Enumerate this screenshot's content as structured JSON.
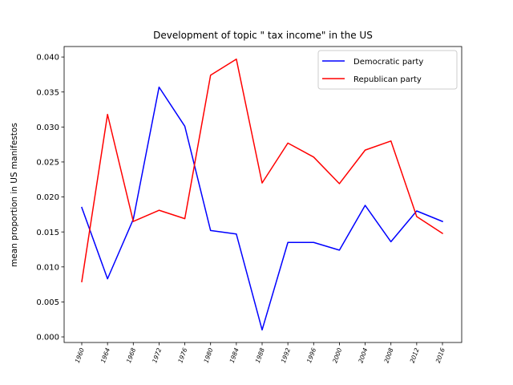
{
  "chart_data": {
    "type": "line",
    "title": "Development of topic \" tax income\" in the US",
    "xlabel": "",
    "ylabel": "mean proportion in US manifestos",
    "categories": [
      "1960",
      "1964",
      "1968",
      "1972",
      "1976",
      "1980",
      "1984",
      "1988",
      "1992",
      "1996",
      "2000",
      "2004",
      "2008",
      "2012",
      "2016"
    ],
    "ylim": [
      -0.0008,
      0.0415
    ],
    "yticks": [
      "0.000",
      "0.005",
      "0.010",
      "0.015",
      "0.020",
      "0.025",
      "0.030",
      "0.035",
      "0.040"
    ],
    "legend_position": "top-right",
    "grid": false,
    "series": [
      {
        "name": "Democratic party",
        "color": "#0000ff",
        "values": [
          0.0185,
          0.0083,
          0.0168,
          0.0357,
          0.0301,
          0.0152,
          0.0147,
          0.001,
          0.0135,
          0.0135,
          0.0124,
          0.0188,
          0.0136,
          0.018,
          0.0165
        ]
      },
      {
        "name": "Republican party",
        "color": "#ff0000",
        "values": [
          0.0079,
          0.0318,
          0.0165,
          0.0181,
          0.0169,
          0.0374,
          0.0397,
          0.022,
          0.0277,
          0.0257,
          0.0219,
          0.0267,
          0.028,
          0.0172,
          0.0148
        ]
      }
    ]
  }
}
